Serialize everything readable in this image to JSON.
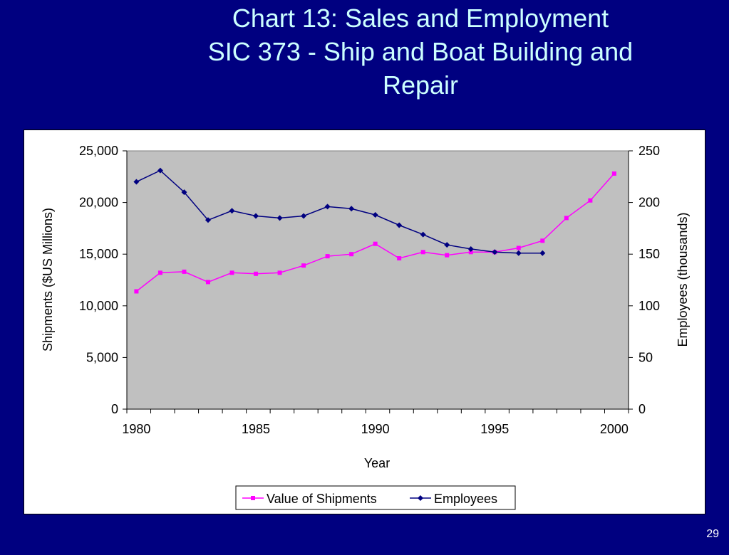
{
  "slide": {
    "title_line1": "Chart 13:  Sales and Employment",
    "title_line2": "SIC 373 - Ship and Boat Building and",
    "title_line3": "Repair",
    "page_number": "29"
  },
  "colors": {
    "background": "#000080",
    "title": "#ccffff",
    "plot_area": "#c0c0c0",
    "shipments": "#ff00ff",
    "employees": "#000080"
  },
  "chart_data": {
    "type": "line",
    "xlabel": "Year",
    "ylabel_left": "Shipments ($US Millions)",
    "ylabel_right": "Employees (thousands)",
    "xlim": [
      1979.6,
      2000.6
    ],
    "ylim_left": [
      0,
      25000
    ],
    "ylim_right": [
      0,
      250
    ],
    "x_ticks": [
      1980,
      1985,
      1990,
      1995,
      2000
    ],
    "y_ticks_left": [
      "0",
      "5,000",
      "10,000",
      "15,000",
      "20,000",
      "25,000"
    ],
    "y_ticks_right": [
      "0",
      "50",
      "100",
      "150",
      "200",
      "250"
    ],
    "grid": false,
    "legend_position": "bottom",
    "series": [
      {
        "name": "Value of Shipments",
        "axis": "left",
        "marker": "square",
        "x": [
          1980,
          1981,
          1982,
          1983,
          1984,
          1985,
          1986,
          1987,
          1988,
          1989,
          1990,
          1991,
          1992,
          1993,
          1994,
          1995,
          1996,
          1997,
          1998,
          1999,
          2000
        ],
        "values": [
          11400,
          13200,
          13300,
          12300,
          13200,
          13100,
          13200,
          13900,
          14800,
          15000,
          16000,
          14600,
          15200,
          14900,
          15200,
          15200,
          15600,
          16300,
          18500,
          20200,
          22800
        ]
      },
      {
        "name": "Employees",
        "axis": "right",
        "marker": "diamond",
        "x": [
          1980,
          1981,
          1982,
          1983,
          1984,
          1985,
          1986,
          1987,
          1988,
          1989,
          1990,
          1991,
          1992,
          1993,
          1994,
          1995,
          1996,
          1997
        ],
        "values": [
          220,
          231,
          210,
          183,
          192,
          187,
          185,
          187,
          196,
          194,
          188,
          178,
          169,
          159,
          155,
          152,
          151,
          151
        ]
      }
    ]
  }
}
